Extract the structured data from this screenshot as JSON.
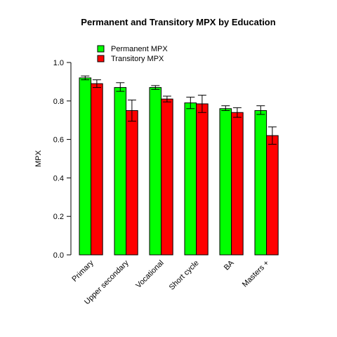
{
  "chart_data": {
    "type": "bar",
    "title": "Permanent and Transitory MPX by  Education",
    "xlabel": "",
    "ylabel": "MPX",
    "ylim": [
      0,
      1.0
    ],
    "yticks": [
      "0.0",
      "0.2",
      "0.4",
      "0.6",
      "0.8",
      "1.0"
    ],
    "categories": [
      "Primary",
      "Upper secondary",
      "Vocational",
      "Short cycle",
      "BA",
      "Masters +"
    ],
    "series": [
      {
        "name": "Permanent MPX",
        "color": "#00ff00",
        "values": [
          0.92,
          0.87,
          0.87,
          0.79,
          0.76,
          0.75
        ],
        "error_low": [
          0.91,
          0.85,
          0.86,
          0.76,
          0.75,
          0.73
        ],
        "error_high": [
          0.93,
          0.895,
          0.88,
          0.82,
          0.775,
          0.775
        ]
      },
      {
        "name": "Transitory MPX",
        "color": "#ff0000",
        "values": [
          0.89,
          0.75,
          0.81,
          0.785,
          0.74,
          0.62
        ],
        "error_low": [
          0.87,
          0.695,
          0.795,
          0.74,
          0.715,
          0.575
        ],
        "error_high": [
          0.91,
          0.805,
          0.825,
          0.83,
          0.765,
          0.665
        ]
      }
    ],
    "legend": "top-left",
    "grid": false
  }
}
